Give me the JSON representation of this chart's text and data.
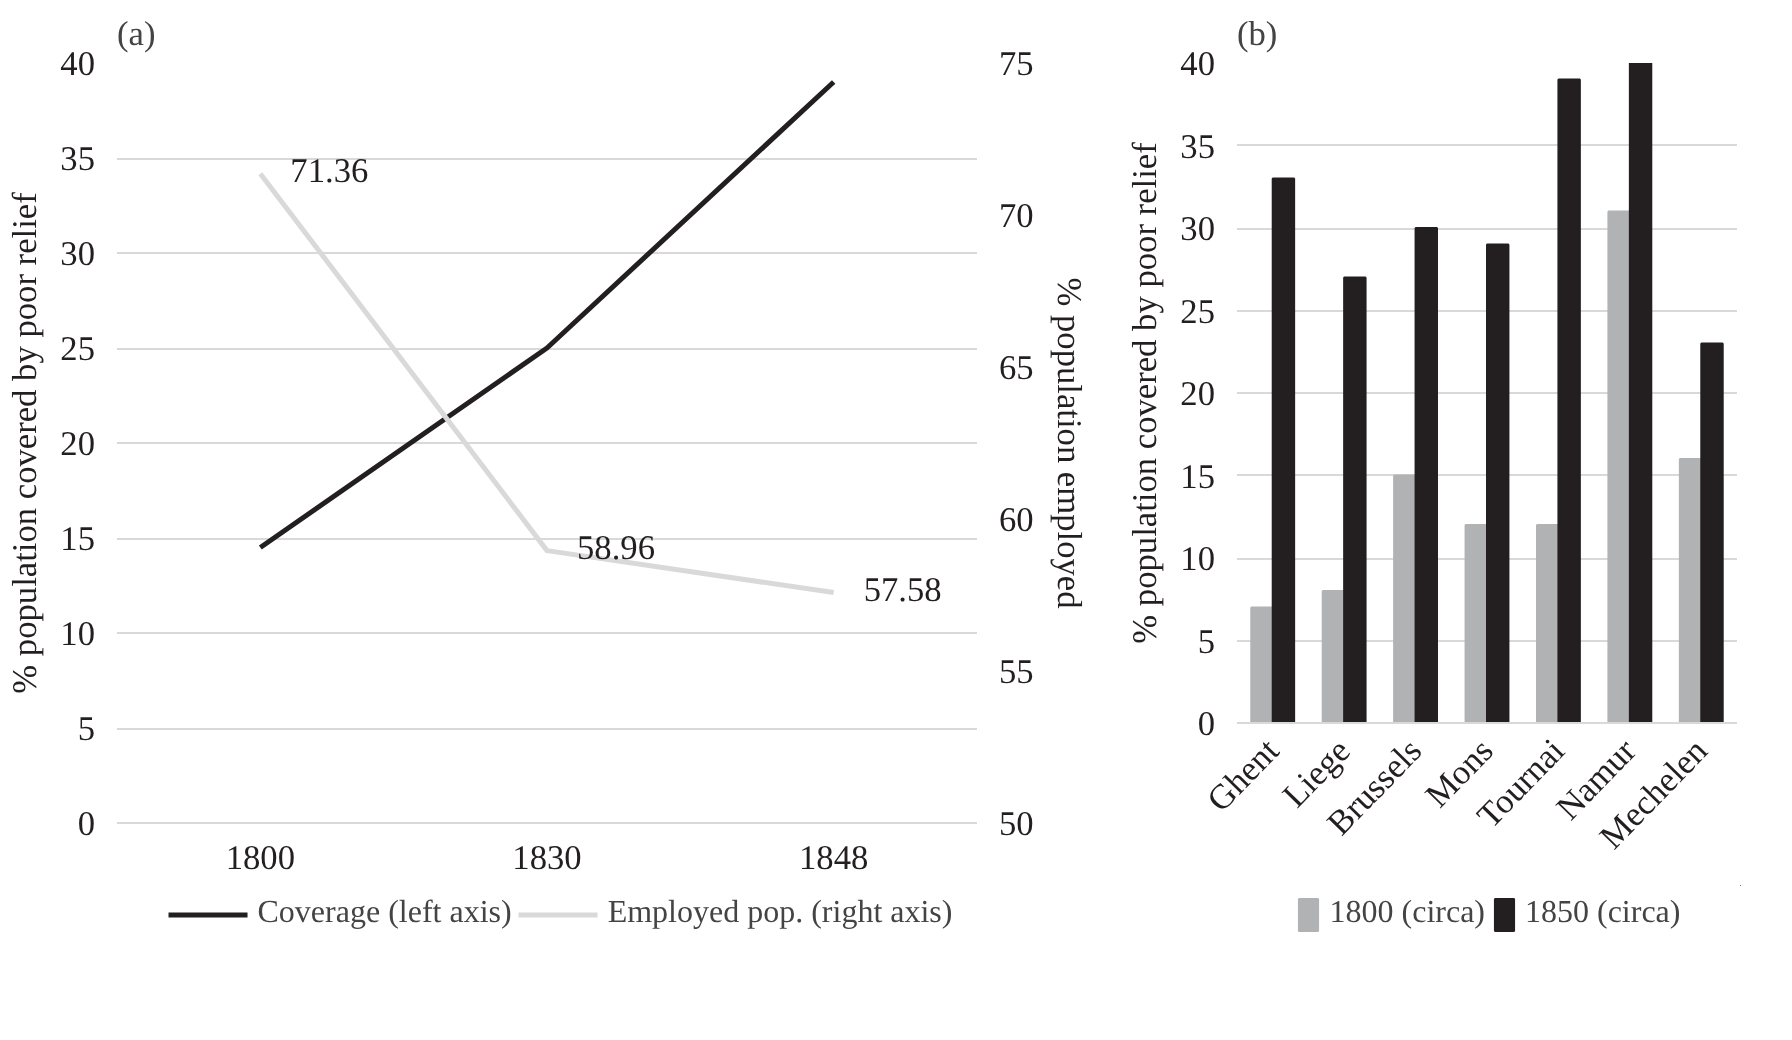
{
  "chart_data": [
    {
      "type": "line",
      "title": "(a)",
      "categories": [
        "1800",
        "1830",
        "1848"
      ],
      "ylabel": "% population covered by poor relief",
      "y2label": "% population employed",
      "ylim": [
        0,
        40
      ],
      "yticks": [
        0,
        5,
        10,
        15,
        20,
        25,
        30,
        35,
        40
      ],
      "y2lim": [
        50,
        75
      ],
      "y2ticks": [
        50,
        55,
        60,
        65,
        70,
        75
      ],
      "grid": "y",
      "legend": "bottom",
      "series": [
        {
          "name": "Coverage (left axis)",
          "color": "#231f20",
          "values": [
            14.5,
            25,
            39
          ]
        },
        {
          "name": "Employed pop. (right axis)",
          "color": "#d9d9d9",
          "axis": "y2",
          "values": [
            71.36,
            58.96,
            57.58
          ],
          "value_labels": [
            "71.36",
            "58.96",
            "57.58"
          ]
        }
      ]
    },
    {
      "type": "bar",
      "title": "(b)",
      "categories": [
        "Ghent",
        "Liege",
        "Brussels",
        "Mons",
        "Tournai",
        "Namur",
        "Mechelen"
      ],
      "ylabel": "% population covered by poor relief",
      "ylim": [
        0,
        40
      ],
      "yticks": [
        0,
        5,
        10,
        15,
        20,
        25,
        30,
        35,
        40
      ],
      "grid": "y",
      "legend": "bottom",
      "series": [
        {
          "name": "1800 (circa)",
          "color": "#b1b2b4",
          "values": [
            7,
            8,
            15,
            12,
            12,
            31,
            16
          ]
        },
        {
          "name": "1850 (circa)",
          "color": "#231f20",
          "values": [
            33,
            27,
            30,
            29,
            39,
            40,
            23
          ]
        }
      ]
    }
  ]
}
